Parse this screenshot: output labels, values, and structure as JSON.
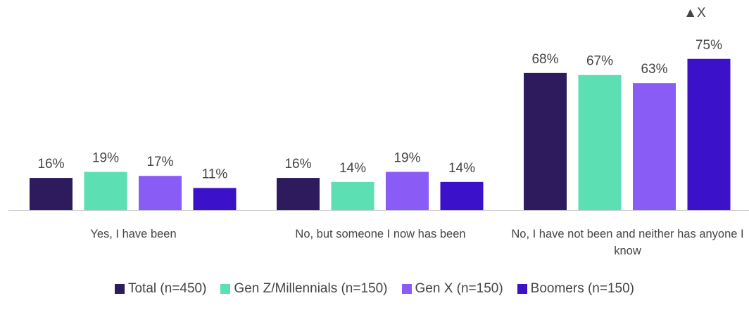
{
  "chart_data": {
    "type": "bar",
    "annotation": "▲X",
    "categories": [
      "Yes, I have been",
      "No, but someone I now has been",
      "No, I have not been and neither has anyone I know"
    ],
    "series": [
      {
        "name": "Total (n=450)",
        "color": "#2d1b5e",
        "values": [
          16,
          16,
          68
        ],
        "value_labels": [
          "16%",
          "16%",
          "68%"
        ]
      },
      {
        "name": "Gen Z/Millennials (n=150)",
        "color": "#5cdfb3",
        "values": [
          19,
          14,
          67
        ],
        "value_labels": [
          "19%",
          "14%",
          "67%"
        ]
      },
      {
        "name": "Gen X (n=150)",
        "color": "#8a5cf6",
        "values": [
          17,
          19,
          63
        ],
        "value_labels": [
          "17%",
          "19%",
          "63%"
        ]
      },
      {
        "name": "Boomers (n=150)",
        "color": "#3b12c9",
        "values": [
          11,
          14,
          75
        ],
        "value_labels": [
          "11%",
          "14%",
          "75%"
        ]
      }
    ]
  }
}
